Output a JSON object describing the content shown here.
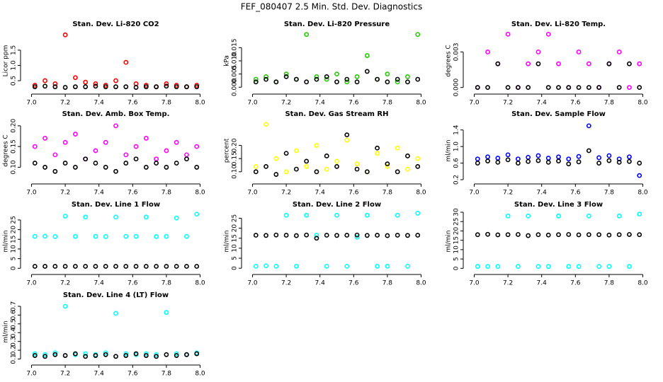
{
  "title": "FEF_080407  2.5 Min. Std. Dev. Diagnostics",
  "chart_data": [
    {
      "type": "scatter",
      "title": "Stan. Dev. Li-820 CO2",
      "ylabel": "Licor ppm",
      "x": [
        7.02,
        7.08,
        7.14,
        7.2,
        7.26,
        7.32,
        7.38,
        7.44,
        7.5,
        7.56,
        7.62,
        7.68,
        7.74,
        7.8,
        7.86,
        7.92,
        7.98
      ],
      "xlim": [
        6.96,
        8.04
      ],
      "xticks": [
        {
          "value": 7,
          "label": "7.0"
        },
        7.2,
        7.4,
        7.6,
        7.8,
        {
          "value": 8,
          "label": "8.0"
        }
      ],
      "ylim": [
        0.2,
        2.1
      ],
      "yticks": [
        0.5,
        {
          "value": 1,
          "label": "1.0"
        },
        1.5
      ],
      "series": [
        {
          "color": "#ff0000",
          "values": [
            0.35,
            0.5,
            0.4,
            2.0,
            0.6,
            0.45,
            0.4,
            0.35,
            0.5,
            1.1,
            0.4,
            0.35,
            0.3,
            0.4,
            0.35,
            0.3,
            0.35
          ]
        },
        {
          "color": "#000000",
          "values": [
            0.3,
            0.32,
            0.3,
            0.28,
            0.3,
            0.3,
            0.32,
            0.3,
            0.3,
            0.3,
            0.28,
            0.3,
            0.3,
            0.32,
            0.3,
            0.3,
            0.3
          ]
        }
      ]
    },
    {
      "type": "scatter",
      "title": "Stan. Dev. Li-820 Pressure",
      "ylabel": "kPa",
      "x": [
        7.02,
        7.08,
        7.14,
        7.2,
        7.26,
        7.32,
        7.38,
        7.44,
        7.5,
        7.56,
        7.62,
        7.68,
        7.74,
        7.8,
        7.86,
        7.92,
        7.98
      ],
      "xlim": [
        6.96,
        8.04
      ],
      "xticks": [
        {
          "value": 7,
          "label": "7.0"
        },
        7.2,
        7.4,
        7.6,
        7.8,
        {
          "value": 8,
          "label": "8.0"
        }
      ],
      "ylim": [
        -0.001,
        0.021
      ],
      "yticks": [
        {
          "value": 0,
          "label": "0.000"
        },
        0.005,
        {
          "value": 0.01,
          "label": "0.010"
        },
        0.015
      ],
      "series": [
        {
          "color": "#22cc00",
          "values": [
            0.003,
            0.004,
            0.002,
            0.005,
            0.003,
            0.02,
            0.004,
            0.003,
            0.005,
            0.002,
            0.004,
            0.012,
            0.003,
            0.005,
            0.002,
            0.004,
            0.02
          ]
        },
        {
          "color": "#000000",
          "values": [
            0.002,
            0.003,
            0.002,
            0.004,
            0.003,
            0.002,
            0.003,
            0.004,
            0.002,
            0.003,
            0.002,
            0.006,
            0.003,
            0.002,
            0.003,
            0.002,
            0.003
          ]
        }
      ]
    },
    {
      "type": "scatter",
      "title": "Stan. Dev. Li-820 Temp.",
      "ylabel": "degrees C",
      "x": [
        7.02,
        7.08,
        7.14,
        7.2,
        7.26,
        7.32,
        7.38,
        7.44,
        7.5,
        7.56,
        7.62,
        7.68,
        7.74,
        7.8,
        7.86,
        7.92,
        7.98
      ],
      "xlim": [
        6.96,
        8.04
      ],
      "xticks": [
        {
          "value": 7,
          "label": "7.0"
        },
        7.2,
        7.4,
        7.6,
        7.8,
        {
          "value": 8,
          "label": "8.0"
        }
      ],
      "ylim": [
        -0.0002,
        0.0047
      ],
      "yticks": [
        {
          "value": 0,
          "label": "0.000"
        },
        0.003
      ],
      "series": [
        {
          "color": "#ff00ff",
          "values": [
            0,
            0.003,
            0.002,
            0.0045,
            0,
            0.002,
            0.003,
            0.0045,
            0.002,
            0,
            0.003,
            0.002,
            0,
            0.002,
            0.003,
            0,
            0.002
          ]
        },
        {
          "color": "#000000",
          "values": [
            0,
            0,
            0.002,
            0,
            0,
            0,
            0.002,
            0,
            0,
            0,
            0,
            0,
            0,
            0.002,
            0,
            0.002,
            0
          ]
        }
      ]
    },
    {
      "type": "scatter",
      "title": "Stan. Dev. Amb. Box Temp.",
      "ylabel": "degrees C",
      "x": [
        7.02,
        7.08,
        7.14,
        7.2,
        7.26,
        7.32,
        7.38,
        7.44,
        7.5,
        7.56,
        7.62,
        7.68,
        7.74,
        7.8,
        7.86,
        7.92,
        7.98
      ],
      "xlim": [
        6.96,
        8.04
      ],
      "xticks": [
        {
          "value": 7,
          "label": "7.0"
        },
        7.2,
        7.4,
        7.6,
        7.8,
        {
          "value": 8,
          "label": "8.0"
        }
      ],
      "ylim": [
        0.07,
        0.21
      ],
      "yticks": [
        {
          "value": 0.1,
          "label": "0.10"
        },
        0.15,
        {
          "value": 0.2,
          "label": "0.20"
        }
      ],
      "series": [
        {
          "color": "#ff00ff",
          "values": [
            0.15,
            0.17,
            0.13,
            0.16,
            0.18,
            0.12,
            0.14,
            0.16,
            0.2,
            0.13,
            0.15,
            0.17,
            0.12,
            0.14,
            0.16,
            0.13,
            0.15
          ]
        },
        {
          "color": "#000000",
          "values": [
            0.11,
            0.1,
            0.09,
            0.11,
            0.1,
            0.12,
            0.11,
            0.1,
            0.09,
            0.11,
            0.12,
            0.1,
            0.11,
            0.1,
            0.11,
            0.12,
            0.1
          ]
        }
      ]
    },
    {
      "type": "scatter",
      "title": "Stan. Dev. Gas Stream RH",
      "ylabel": "percent",
      "x": [
        7.02,
        7.08,
        7.14,
        7.2,
        7.26,
        7.32,
        7.38,
        7.44,
        7.5,
        7.56,
        7.62,
        7.68,
        7.74,
        7.8,
        7.86,
        7.92,
        7.98
      ],
      "xlim": [
        6.96,
        8.04
      ],
      "xticks": [
        {
          "value": 7,
          "label": "7.0"
        },
        7.2,
        7.4,
        7.6,
        7.8,
        {
          "value": 8,
          "label": "8.0"
        }
      ],
      "ylim": [
        0.07,
        0.29
      ],
      "yticks": [
        {
          "value": 0.1,
          "label": "0.10"
        },
        0.15,
        {
          "value": 0.2,
          "label": "0.20"
        }
      ],
      "series": [
        {
          "color": "#ffff00",
          "values": [
            0.12,
            0.28,
            0.15,
            0.1,
            0.18,
            0.12,
            0.2,
            0.11,
            0.14,
            0.22,
            0.13,
            0.1,
            0.17,
            0.12,
            0.19,
            0.11,
            0.15
          ]
        },
        {
          "color": "#000000",
          "values": [
            0.1,
            0.12,
            0.09,
            0.17,
            0.11,
            0.14,
            0.1,
            0.16,
            0.12,
            0.24,
            0.11,
            0.1,
            0.19,
            0.13,
            0.1,
            0.16,
            0.12
          ]
        }
      ]
    },
    {
      "type": "scatter",
      "title": "Stan. Dev. Sample Flow",
      "ylabel": "ml/min",
      "x": [
        7.02,
        7.08,
        7.14,
        7.2,
        7.26,
        7.32,
        7.38,
        7.44,
        7.5,
        7.56,
        7.62,
        7.68,
        7.74,
        7.8,
        7.86,
        7.92,
        7.98
      ],
      "xlim": [
        6.96,
        8.04
      ],
      "xticks": [
        {
          "value": 7,
          "label": "7.0"
        },
        7.2,
        7.4,
        7.6,
        7.8,
        {
          "value": 8,
          "label": "8.0"
        }
      ],
      "ylim": [
        0.2,
        1.6
      ],
      "yticks": [
        0.2,
        0.6,
        {
          "value": 1,
          "label": "1.0"
        },
        1.4
      ],
      "series": [
        {
          "color": "#0000ff",
          "values": [
            0.7,
            0.75,
            0.72,
            0.8,
            0.7,
            0.74,
            0.78,
            0.72,
            0.75,
            0.7,
            0.76,
            1.5,
            0.73,
            0.78,
            0.7,
            0.75,
            0.3
          ]
        },
        {
          "color": "#000000",
          "values": [
            0.6,
            0.65,
            0.62,
            0.68,
            0.6,
            0.64,
            0.66,
            0.62,
            0.65,
            0.58,
            0.63,
            0.9,
            0.6,
            0.66,
            0.62,
            0.64,
            0.6
          ]
        }
      ]
    },
    {
      "type": "scatter",
      "title": "Stan. Dev. Line 1 Flow",
      "ylabel": "ml/min",
      "x": [
        7.02,
        7.08,
        7.14,
        7.2,
        7.26,
        7.32,
        7.38,
        7.44,
        7.5,
        7.56,
        7.62,
        7.68,
        7.74,
        7.8,
        7.86,
        7.92,
        7.98
      ],
      "xlim": [
        6.96,
        8.04
      ],
      "xticks": [
        {
          "value": 7,
          "label": "7.0"
        },
        7.2,
        7.4,
        7.6,
        7.8,
        {
          "value": 8,
          "label": "8.0"
        }
      ],
      "ylim": [
        -1,
        29
      ],
      "yticks": [
        0,
        5,
        10,
        15,
        20,
        25
      ],
      "series": [
        {
          "color": "#00ffff",
          "values": [
            16.5,
            16.6,
            16.4,
            27,
            16.5,
            26.5,
            16.5,
            16.4,
            26.5,
            16.5,
            16.5,
            26.5,
            16.4,
            16.5,
            26,
            16.5,
            28
          ]
        },
        {
          "color": "#000000",
          "values": [
            1,
            1,
            1,
            1,
            1,
            1,
            1,
            1,
            1,
            1,
            1,
            1,
            1,
            1,
            1,
            1,
            1
          ]
        }
      ]
    },
    {
      "type": "scatter",
      "title": "Stan. Dev. Line 2 Flow",
      "ylabel": "ml/min",
      "x": [
        7.02,
        7.08,
        7.14,
        7.2,
        7.26,
        7.32,
        7.38,
        7.44,
        7.5,
        7.56,
        7.62,
        7.68,
        7.74,
        7.8,
        7.86,
        7.92,
        7.98
      ],
      "xlim": [
        6.96,
        8.04
      ],
      "xticks": [
        {
          "value": 7,
          "label": "7.0"
        },
        7.2,
        7.4,
        7.6,
        7.8,
        {
          "value": 8,
          "label": "8.0"
        }
      ],
      "ylim": [
        -1,
        28
      ],
      "yticks": [
        0,
        5,
        10,
        15,
        20,
        25
      ],
      "series": [
        {
          "color": "#00ffff",
          "values": [
            1,
            1.2,
            1,
            26.5,
            1,
            26.5,
            16.5,
            1,
            26.5,
            1,
            15.5,
            26.5,
            1,
            1,
            26.5,
            1,
            27.5
          ]
        },
        {
          "color": "#000000",
          "values": [
            16.5,
            16.4,
            16.6,
            16.5,
            16.3,
            16.6,
            15,
            16.5,
            16.4,
            16.5,
            16.6,
            16.4,
            16.5,
            16.3,
            16.5,
            16.4,
            16.5
          ]
        }
      ]
    },
    {
      "type": "scatter",
      "title": "Stan. Dev. Line 3 Flow",
      "ylabel": "ml/min",
      "x": [
        7.02,
        7.08,
        7.14,
        7.2,
        7.26,
        7.32,
        7.38,
        7.44,
        7.5,
        7.56,
        7.62,
        7.68,
        7.74,
        7.8,
        7.86,
        7.92,
        7.98
      ],
      "xlim": [
        6.96,
        8.04
      ],
      "xticks": [
        {
          "value": 7,
          "label": "7.0"
        },
        7.2,
        7.4,
        7.6,
        7.8,
        {
          "value": 8,
          "label": "8.0"
        }
      ],
      "ylim": [
        -1,
        30
      ],
      "yticks": [
        0,
        5,
        10,
        15,
        20,
        25,
        30
      ],
      "series": [
        {
          "color": "#00ffff",
          "values": [
            1,
            1,
            1,
            28,
            1,
            28,
            1,
            1,
            28,
            1,
            1,
            28,
            1,
            1,
            28,
            1,
            29
          ]
        },
        {
          "color": "#000000",
          "values": [
            18,
            18.2,
            17.9,
            18,
            18.1,
            17.5,
            18,
            17.8,
            18,
            18.1,
            17.9,
            18,
            18,
            17.8,
            18,
            18.1,
            18
          ]
        }
      ]
    },
    {
      "type": "scatter",
      "title": "Stan. Dev. Line 4 (LT) Flow",
      "ylabel": "ml/min",
      "x": [
        7.02,
        7.08,
        7.14,
        7.2,
        7.26,
        7.32,
        7.38,
        7.44,
        7.5,
        7.56,
        7.62,
        7.68,
        7.74,
        7.8,
        7.86,
        7.92,
        7.98
      ],
      "xlim": [
        6.96,
        8.04
      ],
      "xticks": [
        {
          "value": 7,
          "label": "7.0"
        },
        7.2,
        7.4,
        7.6,
        7.8,
        {
          "value": 8,
          "label": "8.0"
        }
      ],
      "ylim": [
        0.08,
        0.74
      ],
      "yticks": [
        0.1,
        0.2,
        0.3,
        0.4,
        0.5,
        0.6,
        0.7
      ],
      "series": [
        {
          "color": "#00ffff",
          "values": [
            0.16,
            0.15,
            0.17,
            0.7,
            0.15,
            0.16,
            0.15,
            0.17,
            0.62,
            0.16,
            0.15,
            0.16,
            0.15,
            0.63,
            0.16,
            0.15,
            0.17
          ]
        },
        {
          "color": "#000000",
          "values": [
            0.14,
            0.13,
            0.15,
            0.14,
            0.16,
            0.13,
            0.14,
            0.15,
            0.13,
            0.14,
            0.16,
            0.14,
            0.13,
            0.15,
            0.14,
            0.15,
            0.16
          ]
        }
      ]
    }
  ]
}
